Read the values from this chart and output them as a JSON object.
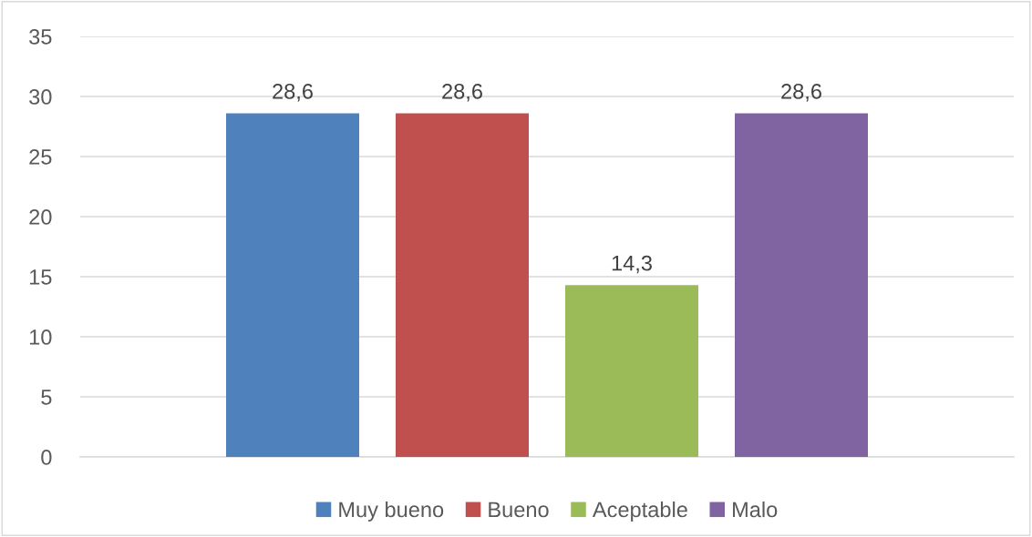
{
  "chart_data": {
    "type": "bar",
    "categories": [
      null
    ],
    "series": [
      {
        "name": "Muy bueno",
        "color": "#4f81bd",
        "values": [
          28.6
        ],
        "value_labels": [
          "28,6"
        ]
      },
      {
        "name": "Bueno",
        "color": "#c0504d",
        "values": [
          28.6
        ],
        "value_labels": [
          "28,6"
        ]
      },
      {
        "name": "Aceptable",
        "color": "#9bbb59",
        "values": [
          14.3
        ],
        "value_labels": [
          "14,3"
        ]
      },
      {
        "name": "Malo",
        "color": "#8064a2",
        "values": [
          28.6
        ],
        "value_labels": [
          "28,6"
        ]
      }
    ],
    "ylim": [
      0,
      35
    ],
    "yticks": [
      0,
      5,
      10,
      15,
      20,
      25,
      30,
      35
    ],
    "grid": "y",
    "legend": "bottom"
  }
}
